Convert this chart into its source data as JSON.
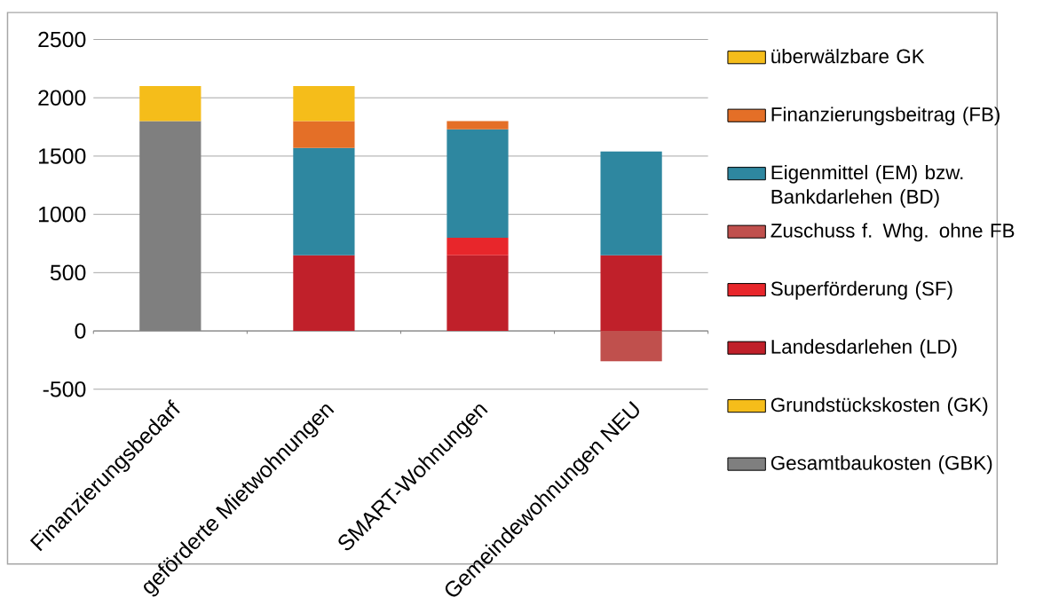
{
  "chart_data": {
    "type": "bar",
    "stacked": true,
    "categories": [
      "Finanzierungsbedarf",
      "geförderte Mietwohnungen",
      "SMART-Wohnungen",
      "Gemeindewohnungen NEU"
    ],
    "series": [
      {
        "name": "Gesamtbaukosten (GBK)",
        "color": "#7f7f7f",
        "values": [
          1800,
          null,
          null,
          null
        ]
      },
      {
        "name": "Grundstückskosten (GK)",
        "color": "#f5bd1a",
        "values": [
          300,
          null,
          null,
          null
        ]
      },
      {
        "name": "Landesdarlehen (LD)",
        "color": "#c0202a",
        "values": [
          null,
          650,
          650,
          650
        ]
      },
      {
        "name": "Superförderung (SF)",
        "color": "#e8262b",
        "values": [
          null,
          null,
          150,
          null
        ]
      },
      {
        "name": "Zuschuss f. Whg. ohne FB",
        "color": "#c0504d",
        "values": [
          null,
          null,
          null,
          -260
        ]
      },
      {
        "name": "Eigenmittel (EM) bzw. Bankdarlehen (BD)",
        "color": "#2e87a0",
        "values": [
          null,
          920,
          930,
          890
        ]
      },
      {
        "name": "Finanzierungsbeitrag (FB)",
        "color": "#e46f27",
        "values": [
          null,
          230,
          70,
          null
        ]
      },
      {
        "name": "überwälzbare GK",
        "color": "#f5bd1a",
        "values": [
          null,
          300,
          null,
          null
        ]
      }
    ],
    "ylim": [
      -500,
      2500
    ],
    "yticks": [
      -500,
      0,
      500,
      1000,
      1500,
      2000,
      2500
    ],
    "grid": "y",
    "legend": "right"
  }
}
